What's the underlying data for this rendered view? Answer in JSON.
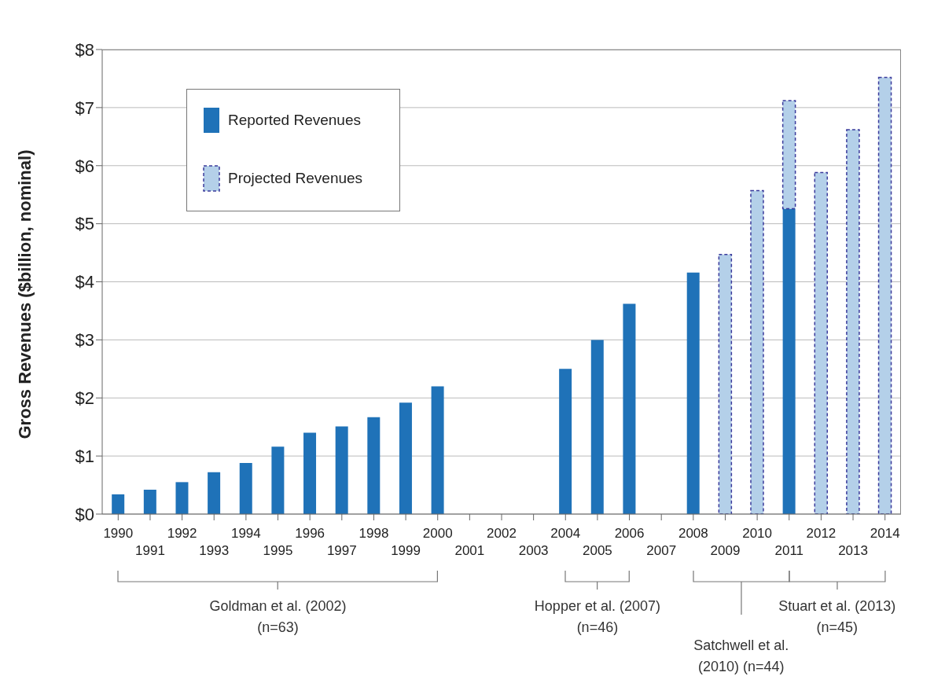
{
  "chart_data": {
    "type": "bar",
    "ylabel": "Gross Revenues ($billion, nominal)",
    "categories": [
      "1990",
      "1991",
      "1992",
      "1993",
      "1994",
      "1995",
      "1996",
      "1997",
      "1998",
      "1999",
      "2000",
      "2001",
      "2002",
      "2003",
      "2004",
      "2005",
      "2006",
      "2007",
      "2008",
      "2009",
      "2010",
      "2011",
      "2012",
      "2013",
      "2014"
    ],
    "stacked": true,
    "series": [
      {
        "name": "Reported Revenues",
        "color": "#1f72b8",
        "values": [
          0.34,
          0.42,
          0.55,
          0.72,
          0.88,
          1.16,
          1.4,
          1.51,
          1.67,
          1.92,
          2.2,
          null,
          null,
          null,
          2.5,
          3.0,
          3.62,
          null,
          4.16,
          null,
          null,
          5.26,
          null,
          null,
          null
        ]
      },
      {
        "name": "Projected Revenues",
        "color": "#b4d0e9",
        "line_style": "dashed",
        "values": [
          null,
          null,
          null,
          null,
          null,
          null,
          null,
          null,
          null,
          null,
          null,
          null,
          null,
          null,
          null,
          null,
          null,
          null,
          null,
          4.47,
          5.57,
          1.86,
          5.88,
          6.62,
          7.52
        ]
      }
    ],
    "ylim": [
      0,
      8
    ],
    "yticks": [
      {
        "value": 0,
        "label": "$0"
      },
      {
        "value": 1,
        "label": "$1"
      },
      {
        "value": 2,
        "label": "$2"
      },
      {
        "value": 3,
        "label": "$3"
      },
      {
        "value": 4,
        "label": "$4"
      },
      {
        "value": 5,
        "label": "$5"
      },
      {
        "value": 6,
        "label": "$6"
      },
      {
        "value": 7,
        "label": "$7"
      },
      {
        "value": 8,
        "label": "$8"
      }
    ],
    "grid": "y",
    "legend": "top left",
    "annotations": [
      "Goldman et al. (2002)\n(n=63)",
      "Hopper et al. (2007)\n(n=46)",
      "Satchwell et al.\n(2010) (n=44)",
      "Stuart et al. (2013)\n(n=45)"
    ]
  }
}
